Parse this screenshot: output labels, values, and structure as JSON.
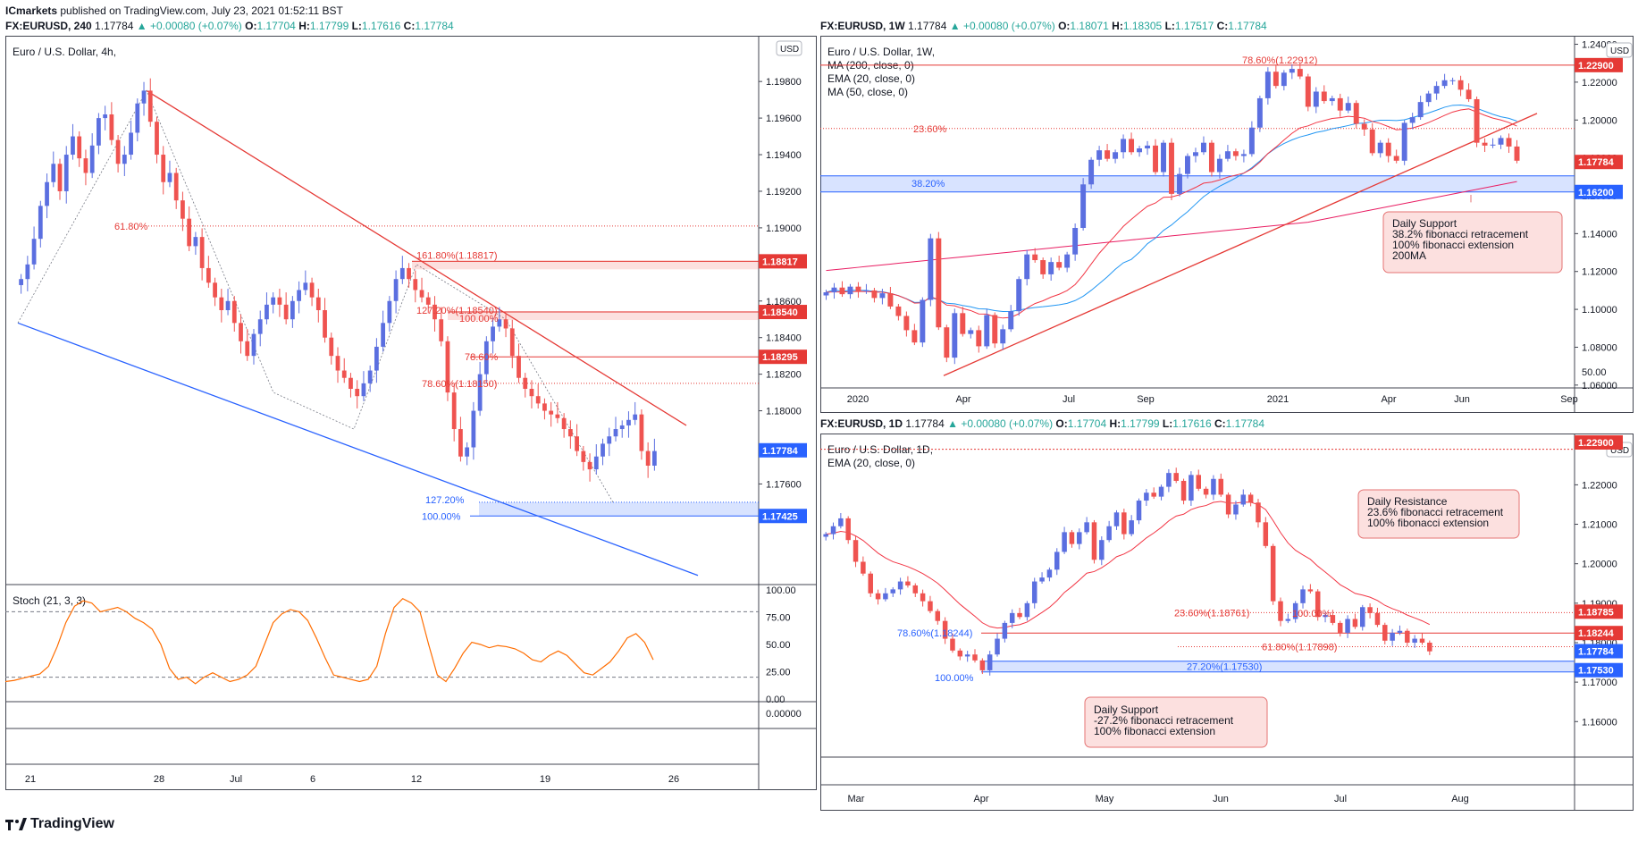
{
  "publisher": {
    "name": "ICmarkets",
    "text": "published on TradingView.com, July 23, 2021 01:52:11 BST"
  },
  "brand": "TradingView",
  "charts": {
    "left": {
      "header": {
        "symbol": "FX:EURUSD, 240",
        "price": "1.17784",
        "change": "+0.00080 (+0.07%)",
        "o": "1.17704",
        "h": "1.17799",
        "l": "1.17616",
        "c": "1.17784"
      },
      "legend": [
        "Euro / U.S. Dollar, 4h,"
      ],
      "currency": "USD",
      "stoch_label": "Stoch (21, 3, 3)"
    },
    "weekly": {
      "header": {
        "symbol": "FX:EURUSD, 1W",
        "price": "1.17784",
        "change": "+0.00080 (+0.07%)",
        "o": "1.18071",
        "h": "1.18305",
        "l": "1.17517",
        "c": "1.17784"
      },
      "legend": [
        "Euro / U.S. Dollar, 1W,",
        "MA (200, close, 0)",
        "EMA (20, close, 0)",
        "MA (50, close, 0)"
      ],
      "currency": "USD",
      "note": [
        "Daily Support",
        "38.2% fibonacci retracement",
        "100% fibonacci extension",
        "200MA"
      ]
    },
    "daily": {
      "header": {
        "symbol": "FX:EURUSD, 1D",
        "price": "1.17784",
        "change": "+0.00080 (+0.07%)",
        "o": "1.17704",
        "h": "1.17799",
        "l": "1.17616",
        "c": "1.17784"
      },
      "legend": [
        "Euro / U.S. Dollar, 1D,",
        "EMA (20, close, 0)"
      ],
      "currency": "USD",
      "note_resistance": [
        "Daily Resistance",
        "23.6% fibonacci retracement",
        "100% fibonacci extension"
      ],
      "note_support": [
        "Daily Support",
        "-27.2% fibonacci retracement",
        "100% fibonacci extension"
      ]
    }
  },
  "chart_data": [
    {
      "id": "left",
      "type": "candlestick",
      "title": "Euro / U.S. Dollar, 4h,",
      "timeframe": "4h",
      "ylim": [
        1.1705,
        1.2005
      ],
      "yticks": [
        1.176,
        1.178,
        1.18,
        1.182,
        1.184,
        1.186,
        1.188,
        1.19,
        1.192,
        1.194,
        1.196,
        1.198
      ],
      "xticks": [
        "21",
        "28",
        "Jul",
        "6",
        "12",
        "19",
        "26"
      ],
      "closes": [
        1.1872,
        1.188,
        1.1894,
        1.1912,
        1.1925,
        1.1935,
        1.192,
        1.194,
        1.195,
        1.1938,
        1.193,
        1.1945,
        1.196,
        1.1962,
        1.1948,
        1.1935,
        1.194,
        1.1952,
        1.1968,
        1.1975,
        1.1958,
        1.194,
        1.1925,
        1.193,
        1.1915,
        1.1905,
        1.189,
        1.1895,
        1.1878,
        1.187,
        1.1862,
        1.1855,
        1.186,
        1.1848,
        1.1838,
        1.183,
        1.1842,
        1.185,
        1.1858,
        1.1862,
        1.1858,
        1.185,
        1.186,
        1.1866,
        1.187,
        1.1862,
        1.1855,
        1.184,
        1.183,
        1.1822,
        1.1818,
        1.1812,
        1.1808,
        1.1815,
        1.1822,
        1.1835,
        1.1848,
        1.186,
        1.1872,
        1.1878,
        1.1872,
        1.1866,
        1.1862,
        1.1858,
        1.185,
        1.1838,
        1.181,
        1.179,
        1.1775,
        1.178,
        1.18,
        1.182,
        1.1838,
        1.1846,
        1.185,
        1.1845,
        1.183,
        1.1818,
        1.1812,
        1.1808,
        1.1804,
        1.18,
        1.1798,
        1.1796,
        1.179,
        1.1786,
        1.1778,
        1.1772,
        1.1768,
        1.1775,
        1.1782,
        1.1786,
        1.179,
        1.1792,
        1.1795,
        1.1798,
        1.1778,
        1.177,
        1.1778
      ],
      "levels": [
        {
          "label": "61.80%",
          "value": 1.1901,
          "style": "dotted"
        },
        {
          "label": "161.80%(1.18817)",
          "value": 1.18817,
          "tag": "1.18817"
        },
        {
          "label": "127.20%(1.18540)",
          "value": 1.1854,
          "tag": "1.18540"
        },
        {
          "label": "100.00%",
          "value": 1.18505
        },
        {
          "label": "78.60%",
          "value": 1.18295,
          "tag": "1.18295"
        },
        {
          "label": "78.60%(1.18150)",
          "value": 1.1815,
          "style": "dotted"
        },
        {
          "label": "127.20%",
          "value": 1.175
        },
        {
          "label": "100.00%",
          "value": 1.17425,
          "tag": "1.17425"
        }
      ],
      "current_price": "1.17784",
      "stochastic": {
        "label": "Stoch (21, 3, 3)",
        "levels": [
          80,
          20
        ],
        "yticks": [
          "100.00",
          "75.00",
          "50.00",
          "25.00",
          "0.00"
        ],
        "values": [
          16,
          17,
          19,
          21,
          23,
          30,
          48,
          70,
          85,
          90,
          88,
          80,
          82,
          84,
          80,
          74,
          70,
          64,
          50,
          28,
          18,
          20,
          14,
          20,
          24,
          20,
          16,
          18,
          22,
          30,
          50,
          70,
          78,
          82,
          80,
          72,
          56,
          38,
          22,
          20,
          18,
          16,
          18,
          30,
          60,
          84,
          92,
          88,
          80,
          50,
          22,
          16,
          28,
          42,
          52,
          50,
          47,
          49,
          48,
          46,
          42,
          36,
          34,
          40,
          44,
          40,
          32,
          24,
          22,
          28,
          34,
          44,
          56,
          60,
          52,
          36
        ],
        "bottom_yticks": [
          "0.00000"
        ]
      }
    },
    {
      "id": "weekly",
      "type": "candlestick",
      "title": "Euro / U.S. Dollar, 1W,",
      "timeframe": "1W",
      "ylim": [
        1.0585,
        1.2445
      ],
      "yticks": [
        1.06,
        1.08,
        1.1,
        1.12,
        1.14,
        1.16,
        1.18,
        1.2,
        1.22,
        1.24
      ],
      "xticks": [
        "2020",
        "Apr",
        "Jul",
        "Sep",
        "2021",
        "Apr",
        "Jun",
        "Sep"
      ],
      "closes": [
        1.109,
        1.1115,
        1.108,
        1.112,
        1.1095,
        1.11,
        1.106,
        1.1085,
        1.1015,
        1.0965,
        1.089,
        1.0825,
        1.105,
        1.1375,
        1.0905,
        1.0745,
        1.098,
        1.087,
        1.089,
        1.0805,
        1.097,
        1.082,
        1.0895,
        1.099,
        1.116,
        1.129,
        1.126,
        1.1185,
        1.125,
        1.122,
        1.129,
        1.143,
        1.166,
        1.179,
        1.184,
        1.1795,
        1.183,
        1.19,
        1.183,
        1.185,
        1.1865,
        1.1725,
        1.188,
        1.161,
        1.1715,
        1.181,
        1.183,
        1.188,
        1.1725,
        1.1795,
        1.1835,
        1.181,
        1.182,
        1.196,
        1.2115,
        1.2255,
        1.218,
        1.225,
        1.227,
        1.223,
        1.207,
        1.215,
        1.21,
        1.2115,
        1.205,
        1.209,
        1.198,
        1.195,
        1.1825,
        1.188,
        1.181,
        1.1785,
        1.1985,
        1.2015,
        1.2095,
        1.214,
        1.218,
        1.221,
        1.221,
        1.216,
        1.211,
        1.188,
        1.1865,
        1.187,
        1.1905,
        1.186,
        1.1785
      ],
      "levels": [
        {
          "label": "78.60%(1.22912)",
          "value": 1.22912
        },
        {
          "label": "23.60%",
          "value": 1.1955,
          "style": "dotted"
        },
        {
          "label": "38.20%",
          "value": 1.1665
        },
        {
          "tag": "1.22900",
          "value": 1.229
        },
        {
          "tag": "1.16200",
          "value": 1.162
        }
      ],
      "current_price": "1.17784",
      "bottom_tick": "50.00"
    },
    {
      "id": "daily",
      "type": "candlestick",
      "title": "Euro / U.S. Dollar, 1D,",
      "timeframe": "1D",
      "ylim": [
        1.151,
        1.233
      ],
      "yticks": [
        1.16,
        1.17,
        1.18,
        1.19,
        1.2,
        1.21,
        1.22
      ],
      "xticks": [
        "Mar",
        "Apr",
        "May",
        "Jun",
        "Jul",
        "Aug"
      ],
      "closes": [
        1.2075,
        1.2095,
        1.2115,
        1.206,
        1.2005,
        1.1975,
        1.1925,
        1.191,
        1.1925,
        1.1935,
        1.1955,
        1.1945,
        1.1925,
        1.1905,
        1.188,
        1.1855,
        1.181,
        1.178,
        1.1765,
        1.177,
        1.1755,
        1.173,
        1.177,
        1.181,
        1.185,
        1.1875,
        1.1865,
        1.19,
        1.1955,
        1.1965,
        1.1985,
        1.203,
        1.208,
        1.205,
        1.208,
        1.2105,
        1.201,
        1.206,
        1.2095,
        1.213,
        1.2075,
        1.211,
        1.216,
        1.218,
        1.217,
        1.2195,
        1.223,
        1.221,
        1.216,
        1.2225,
        1.219,
        1.2175,
        1.2215,
        1.2175,
        1.2125,
        1.215,
        1.2175,
        1.2155,
        1.2105,
        1.2045,
        1.1905,
        1.1855,
        1.186,
        1.19,
        1.1935,
        1.193,
        1.1865,
        1.187,
        1.185,
        1.1825,
        1.186,
        1.184,
        1.189,
        1.1875,
        1.1845,
        1.1805,
        1.1825,
        1.183,
        1.18,
        1.181,
        1.18,
        1.1778
      ],
      "levels": [
        {
          "label": "100.00%",
          "value": 1.1875
        },
        {
          "label": "23.60%(1.18761)",
          "value": 1.18761,
          "style": "dotted"
        },
        {
          "label": "78.60%(1.18244)",
          "value": 1.18244
        },
        {
          "label": "61.80%(1.17898)",
          "value": 1.17898,
          "style": "dotted"
        },
        {
          "label": "27.20%(1.17530)",
          "value": 1.1753
        },
        {
          "label": "100.00%",
          "value": 1.1712
        },
        {
          "tag": "1.22900",
          "value": 1.229
        },
        {
          "tag": "1.18785",
          "value": 1.18785
        },
        {
          "tag": "1.18244",
          "value": 1.18244
        },
        {
          "tag": "1.17530",
          "value": 1.1753
        }
      ],
      "current_price": "1.17784"
    }
  ]
}
